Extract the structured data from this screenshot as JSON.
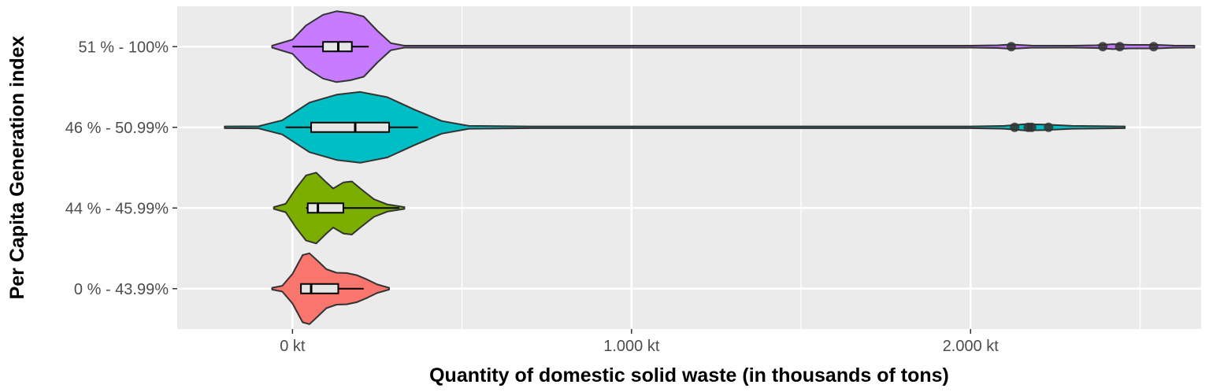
{
  "chart_data": {
    "type": "violin",
    "xlabel": "Quantity of domestic solid waste (in thousands of tons)",
    "ylabel": "Per Capita Generation index",
    "xlim": [
      -340,
      2680
    ],
    "x_ticks": [
      {
        "value": 0,
        "label": "0 kt"
      },
      {
        "value": 1000,
        "label": "1.000 kt"
      },
      {
        "value": 2000,
        "label": "2.000 kt"
      }
    ],
    "x_minor_ticks": [
      500,
      1500,
      2500
    ],
    "grid": true,
    "categories": [
      "0 % - 43.99%",
      "44 % - 45.99%",
      "46 % - 50.99%",
      "51 % - 100%"
    ],
    "series": [
      {
        "category": "0 % - 43.99%",
        "color": "#F8766D",
        "violin_min": -60,
        "violin_max": 285,
        "density": [
          [
            -60,
            0.02
          ],
          [
            -30,
            0.08
          ],
          [
            0,
            0.42
          ],
          [
            30,
            0.95
          ],
          [
            50,
            1.0
          ],
          [
            75,
            0.78
          ],
          [
            100,
            0.55
          ],
          [
            130,
            0.45
          ],
          [
            160,
            0.44
          ],
          [
            190,
            0.38
          ],
          [
            220,
            0.26
          ],
          [
            250,
            0.12
          ],
          [
            285,
            0.02
          ]
        ],
        "box": {
          "q1": 25,
          "median": 55,
          "q3": 135,
          "whisker_low": 25,
          "whisker_high": 210
        },
        "outliers": []
      },
      {
        "category": "44 % - 45.99%",
        "color": "#7CAE00",
        "violin_min": -55,
        "violin_max": 330,
        "density": [
          [
            -55,
            0.02
          ],
          [
            -20,
            0.12
          ],
          [
            10,
            0.55
          ],
          [
            40,
            0.92
          ],
          [
            70,
            1.0
          ],
          [
            100,
            0.72
          ],
          [
            120,
            0.55
          ],
          [
            150,
            0.72
          ],
          [
            175,
            0.75
          ],
          [
            200,
            0.55
          ],
          [
            240,
            0.25
          ],
          [
            280,
            0.1
          ],
          [
            330,
            0.02
          ]
        ],
        "box": {
          "q1": 45,
          "median": 75,
          "q3": 150,
          "whisker_low": 40,
          "whisker_high": 315
        },
        "outliers": []
      },
      {
        "category": "46 % - 50.99%",
        "color": "#00BFC4",
        "violin_min": -200,
        "violin_max": 2455,
        "density": [
          [
            -200,
            0.0
          ],
          [
            -100,
            0.03
          ],
          [
            -30,
            0.2
          ],
          [
            50,
            0.7
          ],
          [
            130,
            0.92
          ],
          [
            200,
            1.0
          ],
          [
            280,
            0.85
          ],
          [
            360,
            0.5
          ],
          [
            440,
            0.18
          ],
          [
            520,
            0.04
          ],
          [
            700,
            0.005
          ],
          [
            2000,
            0.005
          ],
          [
            2100,
            0.04
          ],
          [
            2160,
            0.09
          ],
          [
            2220,
            0.08
          ],
          [
            2300,
            0.04
          ],
          [
            2455,
            0.0
          ]
        ],
        "box": {
          "q1": 55,
          "median": 185,
          "q3": 285,
          "whisker_low": -20,
          "whisker_high": 370
        },
        "outliers": [
          2130,
          2170,
          2180,
          2230
        ]
      },
      {
        "category": "51 % - 100%",
        "color": "#C77CFF",
        "violin_min": -60,
        "violin_max": 2660,
        "density": [
          [
            -60,
            0.02
          ],
          [
            0,
            0.2
          ],
          [
            40,
            0.6
          ],
          [
            90,
            0.9
          ],
          [
            130,
            1.0
          ],
          [
            170,
            0.95
          ],
          [
            210,
            0.85
          ],
          [
            250,
            0.45
          ],
          [
            290,
            0.1
          ],
          [
            330,
            0.02
          ],
          [
            500,
            0.005
          ],
          [
            2000,
            0.005
          ],
          [
            2080,
            0.04
          ],
          [
            2120,
            0.06
          ],
          [
            2180,
            0.03
          ],
          [
            2300,
            0.01
          ],
          [
            2370,
            0.04
          ],
          [
            2420,
            0.07
          ],
          [
            2470,
            0.05
          ],
          [
            2550,
            0.05
          ],
          [
            2600,
            0.03
          ],
          [
            2660,
            0.0
          ]
        ],
        "box": {
          "q1": 90,
          "median": 135,
          "q3": 175,
          "whisker_low": 0,
          "whisker_high": 225
        },
        "outliers": [
          2120,
          2390,
          2440,
          2540
        ]
      }
    ]
  }
}
